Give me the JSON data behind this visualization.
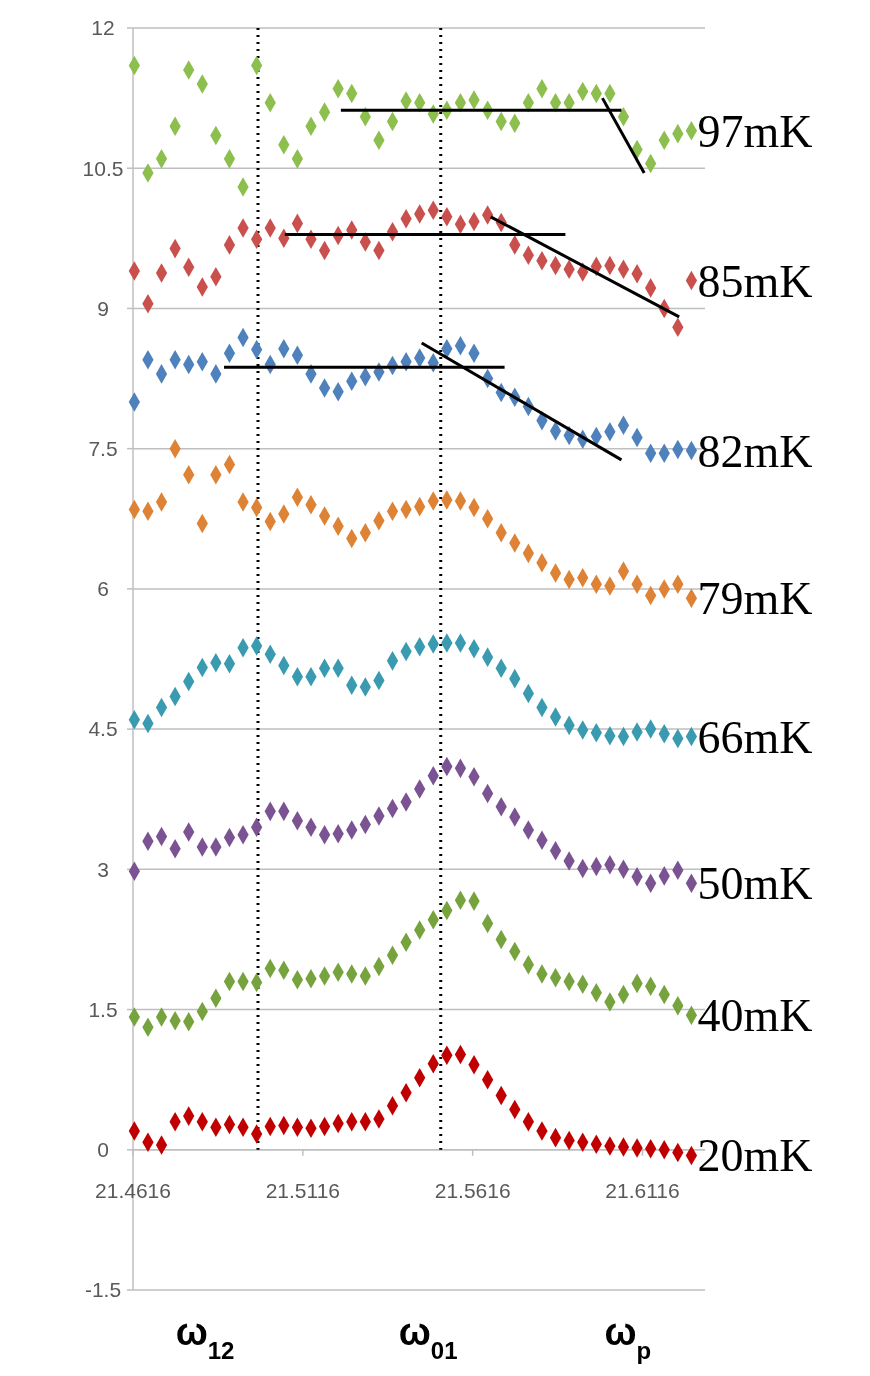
{
  "chart_data": {
    "type": "scatter",
    "marker": "diamond",
    "grid": "y",
    "xlim": [
      21.4616,
      21.63
    ],
    "ylim": [
      -1.5,
      12
    ],
    "xticks": [
      21.4616,
      21.5116,
      21.5616,
      21.6116
    ],
    "yticks": [
      -1.5,
      0,
      1.5,
      3,
      4.5,
      6,
      7.5,
      9,
      10.5,
      12
    ],
    "x": [
      21.462,
      21.466,
      21.47,
      21.474,
      21.478,
      21.482,
      21.486,
      21.49,
      21.494,
      21.498,
      21.502,
      21.506,
      21.51,
      21.514,
      21.518,
      21.522,
      21.526,
      21.53,
      21.534,
      21.538,
      21.542,
      21.546,
      21.55,
      21.554,
      21.558,
      21.562,
      21.566,
      21.57,
      21.574,
      21.578,
      21.582,
      21.586,
      21.59,
      21.594,
      21.598,
      21.602,
      21.606,
      21.61,
      21.614,
      21.618,
      21.622,
      21.626
    ],
    "series": [
      {
        "name": "20mK",
        "color": "#c00000",
        "values": [
          0.2,
          0.08,
          0.05,
          0.3,
          0.36,
          0.3,
          0.24,
          0.27,
          0.24,
          0.17,
          0.25,
          0.26,
          0.24,
          0.23,
          0.25,
          0.28,
          0.3,
          0.3,
          0.33,
          0.47,
          0.61,
          0.77,
          0.92,
          1.01,
          1.02,
          0.91,
          0.75,
          0.58,
          0.43,
          0.3,
          0.2,
          0.13,
          0.1,
          0.08,
          0.06,
          0.04,
          0.03,
          0.02,
          0.01,
          0.0,
          -0.03,
          -0.06
        ]
      },
      {
        "name": "40mK",
        "color": "#77a33f",
        "values": [
          1.42,
          1.31,
          1.42,
          1.38,
          1.37,
          1.48,
          1.62,
          1.8,
          1.8,
          1.79,
          1.94,
          1.92,
          1.82,
          1.83,
          1.86,
          1.9,
          1.88,
          1.86,
          1.96,
          2.08,
          2.22,
          2.35,
          2.46,
          2.56,
          2.67,
          2.66,
          2.42,
          2.25,
          2.12,
          1.98,
          1.88,
          1.84,
          1.8,
          1.77,
          1.68,
          1.58,
          1.66,
          1.78,
          1.75,
          1.66,
          1.54,
          1.44
        ]
      },
      {
        "name": "50mK",
        "color": "#7b5393",
        "values": [
          2.98,
          3.3,
          3.35,
          3.22,
          3.4,
          3.24,
          3.24,
          3.34,
          3.37,
          3.45,
          3.62,
          3.62,
          3.52,
          3.45,
          3.37,
          3.38,
          3.42,
          3.48,
          3.57,
          3.65,
          3.72,
          3.86,
          4.0,
          4.1,
          4.08,
          3.99,
          3.81,
          3.67,
          3.56,
          3.42,
          3.31,
          3.2,
          3.09,
          3.01,
          3.03,
          3.05,
          3.0,
          2.92,
          2.85,
          2.93,
          2.99,
          2.85
        ]
      },
      {
        "name": "66mK",
        "color": "#3a9ab0",
        "values": [
          4.6,
          4.56,
          4.73,
          4.85,
          5.01,
          5.16,
          5.21,
          5.2,
          5.37,
          5.39,
          5.3,
          5.18,
          5.06,
          5.06,
          5.15,
          5.15,
          4.97,
          4.95,
          5.02,
          5.23,
          5.33,
          5.38,
          5.41,
          5.42,
          5.42,
          5.36,
          5.27,
          5.15,
          5.04,
          4.88,
          4.73,
          4.63,
          4.54,
          4.49,
          4.46,
          4.43,
          4.42,
          4.47,
          4.5,
          4.45,
          4.4,
          4.42
        ]
      },
      {
        "name": "79mK",
        "color": "#de8335",
        "values": [
          6.85,
          6.83,
          6.93,
          7.5,
          7.22,
          6.7,
          7.22,
          7.33,
          6.93,
          6.87,
          6.72,
          6.8,
          6.98,
          6.9,
          6.78,
          6.67,
          6.54,
          6.6,
          6.73,
          6.83,
          6.85,
          6.88,
          6.94,
          6.95,
          6.94,
          6.87,
          6.75,
          6.6,
          6.49,
          6.38,
          6.28,
          6.17,
          6.1,
          6.12,
          6.05,
          6.03,
          6.19,
          6.05,
          5.93,
          6.0,
          6.05,
          5.9
        ]
      },
      {
        "name": "82mK",
        "color": "#4f81bd",
        "values": [
          8.0,
          8.45,
          8.3,
          8.45,
          8.4,
          8.43,
          8.3,
          8.52,
          8.69,
          8.56,
          8.4,
          8.57,
          8.5,
          8.3,
          8.15,
          8.11,
          8.22,
          8.27,
          8.32,
          8.39,
          8.43,
          8.47,
          8.42,
          8.57,
          8.6,
          8.52,
          8.25,
          8.1,
          8.05,
          7.95,
          7.8,
          7.69,
          7.64,
          7.6,
          7.63,
          7.68,
          7.75,
          7.62,
          7.45,
          7.45,
          7.49,
          7.48
        ]
      },
      {
        "name": "85mK",
        "color": "#c9504d",
        "values": [
          9.4,
          9.05,
          9.38,
          9.64,
          9.44,
          9.23,
          9.34,
          9.68,
          9.86,
          9.74,
          9.86,
          9.75,
          9.91,
          9.74,
          9.62,
          9.78,
          9.84,
          9.71,
          9.62,
          9.82,
          9.96,
          10.01,
          10.05,
          9.98,
          9.9,
          9.93,
          10.0,
          9.92,
          9.68,
          9.57,
          9.51,
          9.46,
          9.42,
          9.39,
          9.45,
          9.46,
          9.42,
          9.37,
          9.22,
          9.0,
          8.8,
          9.3
        ]
      },
      {
        "name": "97mK",
        "color": "#8dbf4e",
        "values": [
          11.6,
          10.45,
          10.6,
          10.95,
          11.55,
          11.4,
          10.85,
          10.6,
          10.3,
          11.6,
          11.2,
          10.75,
          10.6,
          10.95,
          11.1,
          11.35,
          11.3,
          11.05,
          10.8,
          11.0,
          11.22,
          11.2,
          11.08,
          11.12,
          11.2,
          11.23,
          11.12,
          11.0,
          10.98,
          11.2,
          11.35,
          11.2,
          11.2,
          11.32,
          11.3,
          11.3,
          11.05,
          10.7,
          10.55,
          10.8,
          10.87,
          10.9
        ]
      },
      {
        "type": "line",
        "color": "#000000",
        "marker": "none",
        "x": [
          21.5228,
          21.6054
        ],
        "values": [
          11.12,
          11.12
        ]
      },
      {
        "type": "line",
        "color": "#000000",
        "marker": "none",
        "x": [
          21.5998,
          21.6121
        ],
        "values": [
          11.25,
          10.45
        ]
      },
      {
        "type": "line",
        "color": "#000000",
        "marker": "none",
        "x": [
          21.5063,
          21.5889
        ],
        "values": [
          9.79,
          9.79
        ]
      },
      {
        "type": "line",
        "color": "#000000",
        "marker": "none",
        "x": [
          21.5669,
          21.6224
        ],
        "values": [
          9.98,
          8.91
        ]
      },
      {
        "type": "line",
        "color": "#000000",
        "marker": "none",
        "x": [
          21.4884,
          21.571
        ],
        "values": [
          8.37,
          8.37
        ]
      },
      {
        "type": "line",
        "color": "#000000",
        "marker": "none",
        "x": [
          21.5466,
          21.6054
        ],
        "values": [
          8.63,
          7.38
        ]
      }
    ],
    "ref_lines": [
      {
        "axis": "x",
        "value": 21.4984,
        "color": "#000000",
        "line_style": "dotted"
      },
      {
        "axis": "x",
        "value": 21.5522,
        "color": "#000000",
        "line_style": "dotted"
      }
    ],
    "annotations": [
      "ω$_{12}$",
      "ω$_{01}$",
      "ω$_{p}$"
    ]
  }
}
